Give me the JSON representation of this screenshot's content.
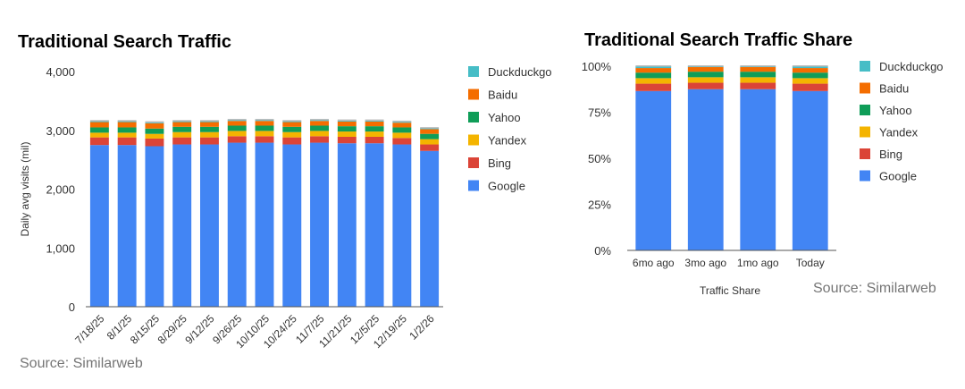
{
  "colors": {
    "Google": "#4285F4",
    "Bing": "#DB4437",
    "Yandex": "#F4B400",
    "Yahoo": "#0F9D58",
    "Baidu": "#F46D00",
    "Duckduckgo": "#46BDC6",
    "axis": "#333333",
    "muted": "#757575"
  },
  "chart_data": [
    {
      "type": "bar",
      "stacked": true,
      "title": "Traditional Search Traffic",
      "ylabel": "Daily avg visits (mil)",
      "xlabel": "",
      "ylim": [
        0,
        4000
      ],
      "yticks": [
        0,
        1000,
        2000,
        3000,
        4000
      ],
      "ytick_labels": [
        "0",
        "1,000",
        "2,000",
        "3,000",
        "4,000"
      ],
      "grid": false,
      "legend": "right",
      "source": "Source: Similarweb",
      "categories": [
        "7/18/25",
        "8/1/25",
        "8/15/25",
        "8/29/25",
        "9/12/25",
        "9/26/25",
        "10/10/25",
        "10/24/25",
        "11/7/25",
        "11/21/25",
        "12/5/25",
        "12/19/25",
        "1/2/26"
      ],
      "series": [
        {
          "name": "Google",
          "values": [
            2750,
            2750,
            2730,
            2760,
            2760,
            2790,
            2790,
            2760,
            2790,
            2780,
            2780,
            2760,
            2650
          ]
        },
        {
          "name": "Bing",
          "values": [
            130,
            130,
            130,
            120,
            120,
            110,
            110,
            120,
            110,
            110,
            110,
            110,
            110
          ]
        },
        {
          "name": "Yandex",
          "values": [
            80,
            80,
            80,
            90,
            90,
            90,
            90,
            90,
            90,
            90,
            90,
            90,
            90
          ]
        },
        {
          "name": "Yahoo",
          "values": [
            90,
            90,
            90,
            90,
            90,
            90,
            90,
            90,
            90,
            90,
            90,
            90,
            90
          ]
        },
        {
          "name": "Baidu",
          "values": [
            90,
            90,
            90,
            80,
            80,
            80,
            80,
            80,
            80,
            80,
            80,
            80,
            80
          ]
        },
        {
          "name": "Duckduckgo",
          "values": [
            20,
            20,
            20,
            20,
            20,
            20,
            20,
            20,
            20,
            20,
            20,
            20,
            20
          ]
        }
      ]
    },
    {
      "type": "bar",
      "stacked": true,
      "title": "Traditional Search Traffic Share",
      "xlabel": "Traffic Share",
      "ylabel": "",
      "ylim": [
        0,
        100
      ],
      "yticks": [
        0,
        25,
        50,
        75,
        100
      ],
      "ytick_labels": [
        "0%",
        "25%",
        "50%",
        "75%",
        "100%"
      ],
      "grid": false,
      "legend": "right",
      "source": "Source: Similarweb",
      "categories": [
        "6mo ago",
        "3mo ago",
        "1mo ago",
        "Today"
      ],
      "series": [
        {
          "name": "Google",
          "values": [
            86.5,
            87.5,
            87.5,
            86.5
          ]
        },
        {
          "name": "Bing",
          "values": [
            4.0,
            3.5,
            3.5,
            4.0
          ]
        },
        {
          "name": "Yandex",
          "values": [
            3.0,
            3.0,
            3.0,
            3.0
          ]
        },
        {
          "name": "Yahoo",
          "values": [
            3.0,
            3.0,
            3.0,
            3.0
          ]
        },
        {
          "name": "Baidu",
          "values": [
            2.5,
            2.5,
            2.5,
            2.5
          ]
        },
        {
          "name": "Duckduckgo",
          "values": [
            1.0,
            0.5,
            0.5,
            1.0
          ]
        }
      ]
    }
  ]
}
